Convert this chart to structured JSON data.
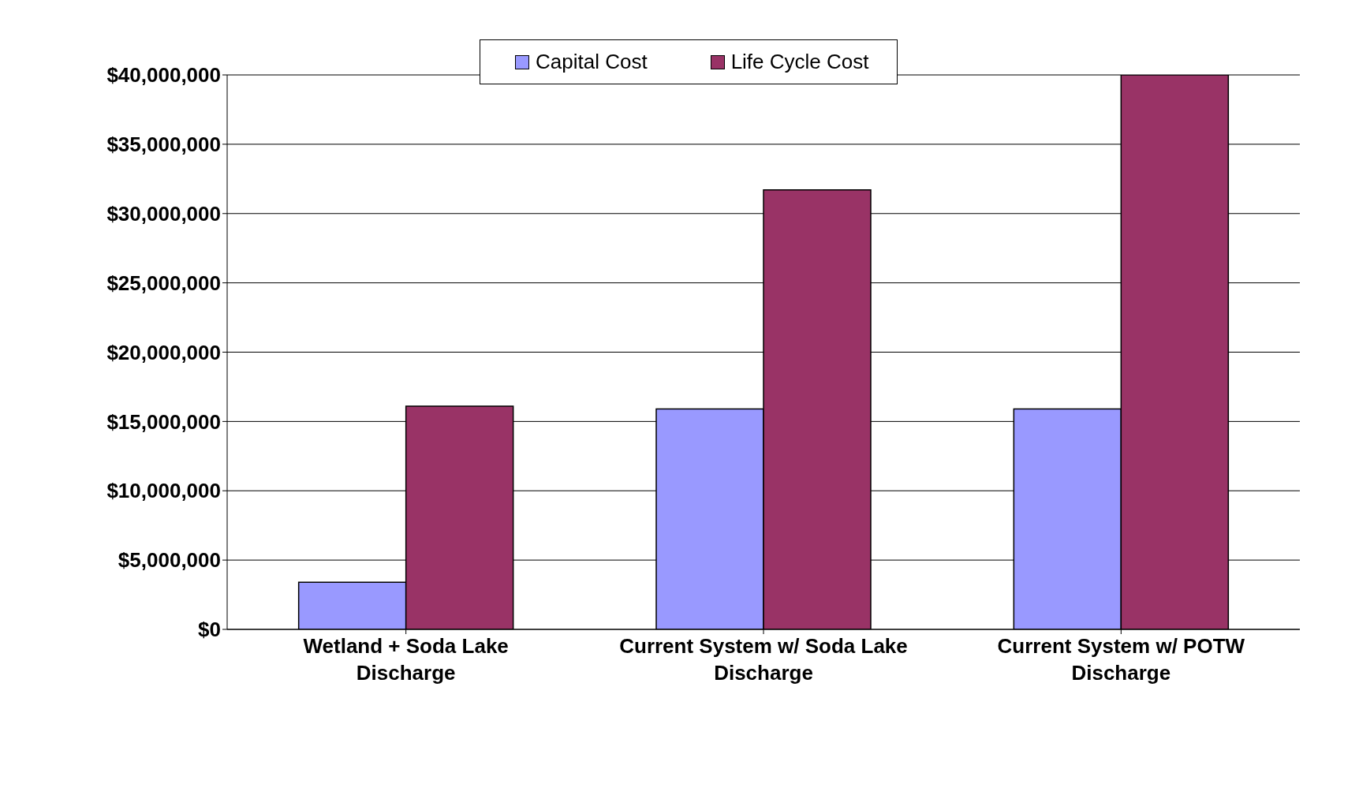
{
  "chart_data": {
    "type": "bar",
    "categories": [
      "Wetland + Soda Lake Discharge",
      "Current System w/ Soda Lake Discharge",
      "Current System w/ POTW Discharge"
    ],
    "series": [
      {
        "name": "Capital Cost",
        "color": "#9999ff",
        "values": [
          3400000,
          15900000,
          15900000
        ]
      },
      {
        "name": "Life Cycle Cost",
        "color": "#993366",
        "values": [
          16100000,
          31700000,
          40000000
        ]
      }
    ],
    "ylim": [
      0,
      40000000
    ],
    "yticks": [
      {
        "value": 0,
        "label": "$0"
      },
      {
        "value": 5000000,
        "label": "$5,000,000"
      },
      {
        "value": 10000000,
        "label": "$10,000,000"
      },
      {
        "value": 15000000,
        "label": "$15,000,000"
      },
      {
        "value": 20000000,
        "label": "$20,000,000"
      },
      {
        "value": 25000000,
        "label": "$25,000,000"
      },
      {
        "value": 30000000,
        "label": "$30,000,000"
      },
      {
        "value": 35000000,
        "label": "$35,000,000"
      },
      {
        "value": 40000000,
        "label": "$40,000,000"
      }
    ],
    "grid": "y",
    "legend": "top"
  }
}
